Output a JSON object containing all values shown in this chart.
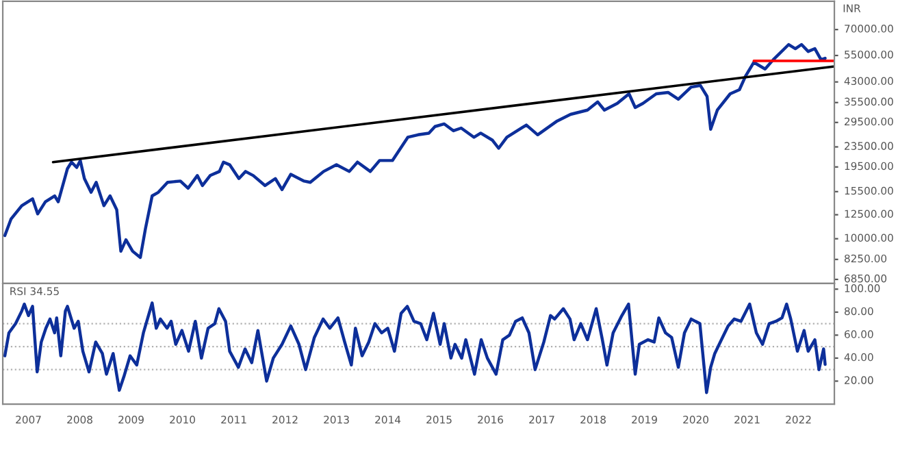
{
  "chart_data": [
    {
      "type": "line",
      "ylabel": "INR",
      "log": "y",
      "grid": false,
      "legend": false,
      "tick_labels": "y",
      "line_style": "solid",
      "marker": "none",
      "xlim": [
        2006.5,
        2022.7
      ],
      "ylim": [
        6600,
        91000
      ],
      "yticks": [
        {
          "value": 6850,
          "label": "6850.00"
        },
        {
          "value": 8250,
          "label": "8250.00"
        },
        {
          "value": 10000,
          "label": "10000.00"
        },
        {
          "value": 12500,
          "label": "12500.00"
        },
        {
          "value": 15500,
          "label": "15500.00"
        },
        {
          "value": 19500,
          "label": "19500.00"
        },
        {
          "value": 23500,
          "label": "23500.00"
        },
        {
          "value": 29500,
          "label": "29500.00"
        },
        {
          "value": 35500,
          "label": "35500.00"
        },
        {
          "value": 43000,
          "label": "43000.00"
        },
        {
          "value": 55000,
          "label": "55000.00"
        },
        {
          "value": 70000,
          "label": "70000.00"
        }
      ],
      "series": [
        {
          "color": "#0d2f9a",
          "x": [
            2006.54,
            2006.66,
            2006.87,
            2007.08,
            2007.18,
            2007.33,
            2007.51,
            2007.58,
            2007.76,
            2007.84,
            2007.94,
            2008.01,
            2008.09,
            2008.22,
            2008.32,
            2008.47,
            2008.59,
            2008.72,
            2008.8,
            2008.9,
            2009.03,
            2009.18,
            2009.28,
            2009.41,
            2009.53,
            2009.71,
            2009.96,
            2010.11,
            2010.29,
            2010.39,
            2010.54,
            2010.72,
            2010.8,
            2010.92,
            2011.1,
            2011.23,
            2011.38,
            2011.61,
            2011.81,
            2011.94,
            2012.11,
            2012.37,
            2012.49,
            2012.75,
            2013.0,
            2013.25,
            2013.41,
            2013.66,
            2013.84,
            2014.09,
            2014.39,
            2014.59,
            2014.8,
            2014.92,
            2015.1,
            2015.28,
            2015.43,
            2015.68,
            2015.81,
            2016.04,
            2016.16,
            2016.32,
            2016.7,
            2016.92,
            2017.3,
            2017.56,
            2017.89,
            2018.09,
            2018.22,
            2018.47,
            2018.7,
            2018.82,
            2018.97,
            2019.23,
            2019.46,
            2019.66,
            2019.91,
            2020.09,
            2020.22,
            2020.29,
            2020.42,
            2020.67,
            2020.85,
            2020.97,
            2021.13,
            2021.35,
            2021.51,
            2021.81,
            2021.94,
            2022.06,
            2022.19,
            2022.32,
            2022.44,
            2022.52
          ],
          "values": [
            10300,
            12000,
            13600,
            14500,
            12600,
            14100,
            14900,
            14100,
            19200,
            20400,
            19400,
            20700,
            17500,
            15400,
            16900,
            13600,
            14900,
            13100,
            8900,
            9900,
            8900,
            8400,
            11000,
            14900,
            15400,
            16900,
            17100,
            16000,
            18000,
            16400,
            18000,
            18700,
            20400,
            19900,
            17500,
            18700,
            18000,
            16400,
            17500,
            15800,
            18200,
            17100,
            16900,
            18700,
            19900,
            18700,
            20400,
            18700,
            20700,
            20700,
            25700,
            26300,
            26700,
            28400,
            29100,
            27300,
            28000,
            25700,
            26700,
            25000,
            23200,
            25700,
            28800,
            26300,
            29900,
            31800,
            33100,
            35700,
            33100,
            35200,
            38500,
            33900,
            35200,
            38500,
            39000,
            36600,
            41000,
            41600,
            37600,
            27700,
            33100,
            38500,
            40000,
            45400,
            51600,
            48500,
            52900,
            60900,
            58600,
            60900,
            57100,
            58600,
            52900,
            53600
          ]
        },
        {
          "color": "#000000",
          "x": [
            2007.48,
            2022.7
          ],
          "values": [
            20400,
            49700
          ]
        },
        {
          "color": "#ff0000",
          "x": [
            2021.13,
            2022.7
          ],
          "values": [
            52300,
            52300
          ]
        }
      ]
    },
    {
      "type": "line",
      "grid": false,
      "legend": false,
      "line_style": "solid",
      "marker": "none",
      "annotations": [
        "RSI 34.55"
      ],
      "xlim": [
        2006.5,
        2022.7
      ],
      "ylim": [
        0,
        105
      ],
      "xticks": [
        2007,
        2008,
        2009,
        2010,
        2011,
        2012,
        2013,
        2014,
        2015,
        2016,
        2017,
        2018,
        2019,
        2020,
        2021,
        2022
      ],
      "yticks": [
        {
          "value": 20,
          "label": "20.00"
        },
        {
          "value": 40,
          "label": "40.00"
        },
        {
          "value": 60,
          "label": "60.00"
        },
        {
          "value": 80,
          "label": "80.00"
        },
        {
          "value": 100,
          "label": "100.00"
        }
      ],
      "ref_lines": [
        {
          "axis": "y",
          "value": 30,
          "color": "#b0b0b0",
          "line_style": "dotted"
        },
        {
          "axis": "y",
          "value": 50,
          "color": "#b0b0b0",
          "line_style": "dotted"
        },
        {
          "axis": "y",
          "value": 70,
          "color": "#b0b0b0",
          "line_style": "dotted"
        }
      ],
      "series": [
        {
          "color": "#0d2f9a",
          "x": [
            2006.54,
            2006.62,
            2006.75,
            2006.87,
            2006.92,
            2007.0,
            2007.08,
            2007.17,
            2007.25,
            2007.34,
            2007.42,
            2007.51,
            2007.55,
            2007.63,
            2007.72,
            2007.76,
            2007.89,
            2007.97,
            2008.06,
            2008.18,
            2008.31,
            2008.44,
            2008.52,
            2008.65,
            2008.77,
            2008.86,
            2008.98,
            2009.11,
            2009.24,
            2009.41,
            2009.49,
            2009.57,
            2009.7,
            2009.78,
            2009.87,
            2009.99,
            2010.12,
            2010.25,
            2010.37,
            2010.5,
            2010.63,
            2010.71,
            2010.84,
            2010.92,
            2011.09,
            2011.22,
            2011.35,
            2011.47,
            2011.64,
            2011.77,
            2011.94,
            2012.11,
            2012.27,
            2012.4,
            2012.57,
            2012.74,
            2012.87,
            2013.03,
            2013.16,
            2013.29,
            2013.37,
            2013.5,
            2013.63,
            2013.75,
            2013.88,
            2014.0,
            2014.13,
            2014.26,
            2014.38,
            2014.51,
            2014.64,
            2014.76,
            2014.89,
            2015.02,
            2015.1,
            2015.23,
            2015.31,
            2015.44,
            2015.52,
            2015.69,
            2015.82,
            2015.94,
            2016.11,
            2016.24,
            2016.37,
            2016.49,
            2016.62,
            2016.75,
            2016.87,
            2017.04,
            2017.17,
            2017.25,
            2017.42,
            2017.55,
            2017.63,
            2017.76,
            2017.89,
            2018.06,
            2018.18,
            2018.27,
            2018.39,
            2018.56,
            2018.69,
            2018.82,
            2018.9,
            2019.07,
            2019.19,
            2019.28,
            2019.41,
            2019.53,
            2019.66,
            2019.78,
            2019.91,
            2020.08,
            2020.21,
            2020.29,
            2020.37,
            2020.5,
            2020.63,
            2020.75,
            2020.88,
            2021.05,
            2021.18,
            2021.3,
            2021.43,
            2021.56,
            2021.68,
            2021.77,
            2021.85,
            2021.98,
            2022.11,
            2022.19,
            2022.32,
            2022.4,
            2022.49,
            2022.52
          ],
          "values": [
            42,
            62,
            70,
            81,
            87,
            77,
            85,
            28,
            54,
            66,
            74,
            62,
            75,
            42,
            81,
            85,
            66,
            72,
            46,
            28,
            54,
            44,
            26,
            44,
            12,
            24,
            42,
            34,
            62,
            88,
            66,
            74,
            66,
            72,
            52,
            64,
            46,
            72,
            40,
            66,
            70,
            83,
            72,
            46,
            32,
            48,
            36,
            64,
            20,
            40,
            52,
            68,
            52,
            30,
            58,
            74,
            66,
            75,
            54,
            34,
            66,
            42,
            54,
            70,
            62,
            66,
            46,
            79,
            85,
            72,
            70,
            56,
            79,
            52,
            70,
            40,
            52,
            40,
            56,
            26,
            56,
            40,
            26,
            56,
            60,
            72,
            75,
            62,
            30,
            54,
            77,
            74,
            83,
            74,
            56,
            70,
            56,
            83,
            56,
            34,
            62,
            77,
            87,
            26,
            52,
            56,
            54,
            75,
            62,
            58,
            32,
            62,
            74,
            70,
            10,
            32,
            44,
            56,
            68,
            74,
            72,
            87,
            62,
            52,
            70,
            72,
            75,
            87,
            74,
            46,
            64,
            46,
            56,
            30,
            48,
            34.5
          ]
        }
      ]
    }
  ]
}
